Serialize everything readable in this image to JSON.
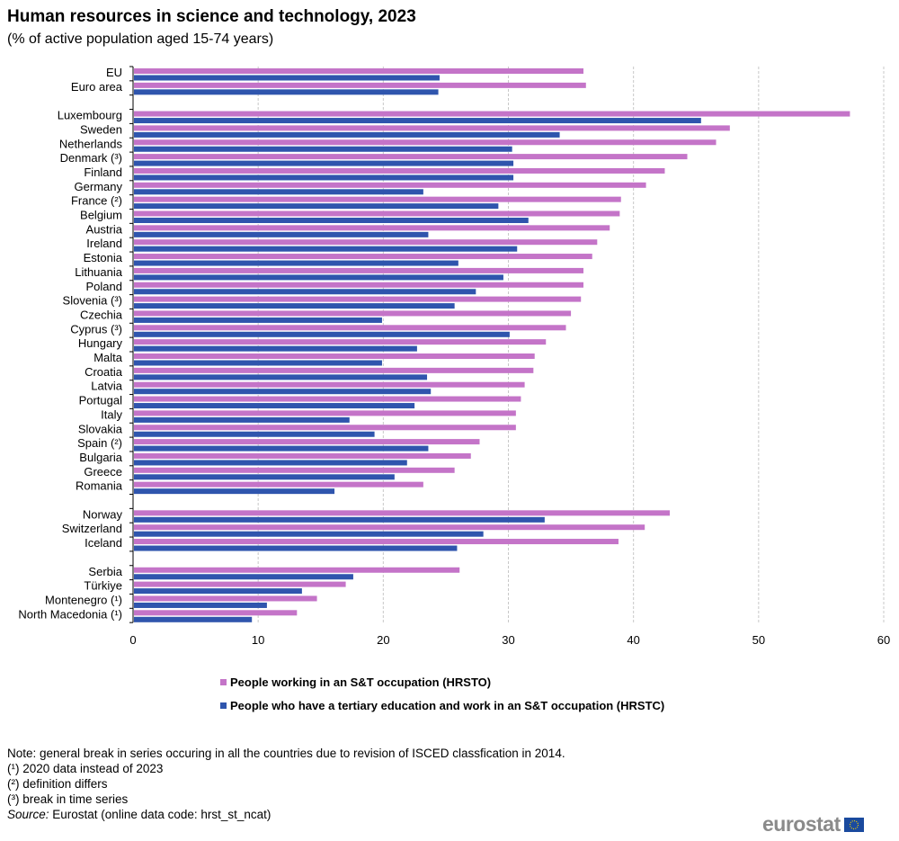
{
  "chart_data": {
    "type": "bar",
    "orientation": "horizontal",
    "title": "Human resources in science and technology, 2023",
    "subtitle": "(% of active population  aged 15-74 years)",
    "xlim": [
      0,
      60
    ],
    "xticks": [
      "0",
      "10",
      "20",
      "30",
      "40",
      "50",
      "60"
    ],
    "grid": true,
    "legend_position": "bottom",
    "categories": [
      "EU",
      "Euro area",
      null,
      "Luxembourg",
      "Sweden",
      "Netherlands",
      "Denmark (³)",
      "Finland",
      "Germany",
      "France (²)",
      "Belgium",
      "Austria",
      "Ireland",
      "Estonia",
      "Lithuania",
      "Poland",
      "Slovenia (³)",
      "Czechia",
      "Cyprus (³)",
      "Hungary",
      "Malta",
      "Croatia",
      "Latvia",
      "Portugal",
      "Italy",
      "Slovakia",
      "Spain (²)",
      "Bulgaria",
      "Greece",
      "Romania",
      null,
      "Norway",
      "Switzerland",
      "Iceland",
      null,
      "Serbia",
      "Türkiye",
      "Montenegro (¹)",
      "North Macedonia (¹)"
    ],
    "series": [
      {
        "name": "People working in an S&T occupation (HRSTO)",
        "color": "#c474c8",
        "values": [
          36.0,
          36.2,
          null,
          57.3,
          47.7,
          46.6,
          44.3,
          42.5,
          41.0,
          39.0,
          38.9,
          38.1,
          37.1,
          36.7,
          36.0,
          36.0,
          35.8,
          35.0,
          34.6,
          33.0,
          32.1,
          32.0,
          31.3,
          31.0,
          30.6,
          30.6,
          27.7,
          27.0,
          25.7,
          23.2,
          null,
          42.9,
          40.9,
          38.8,
          null,
          26.1,
          17.0,
          14.7,
          13.1
        ]
      },
      {
        "name": "People who have a tertiary education and work in an S&T occupation (HRSTC)",
        "color": "#2f55ad",
        "values": [
          24.5,
          24.4,
          null,
          45.4,
          34.1,
          30.3,
          30.4,
          30.4,
          23.2,
          29.2,
          31.6,
          23.6,
          30.7,
          26.0,
          29.6,
          27.4,
          25.7,
          19.9,
          30.1,
          22.7,
          19.9,
          23.5,
          23.8,
          22.5,
          17.3,
          19.3,
          23.6,
          21.9,
          20.9,
          16.1,
          null,
          32.9,
          28.0,
          25.9,
          null,
          17.6,
          13.5,
          10.7,
          9.5
        ]
      }
    ]
  },
  "notes": [
    "Note: general break in series occuring in all the countries due to revision of ISCED classfication in 2014.",
    "(¹) 2020 data instead of 2023",
    "(²) definition differs",
    "(³) break in time series"
  ],
  "source_label": "Source:",
  "source_text": " Eurostat (online data code: hrst_st_ncat)",
  "logo_text": "eurostat"
}
